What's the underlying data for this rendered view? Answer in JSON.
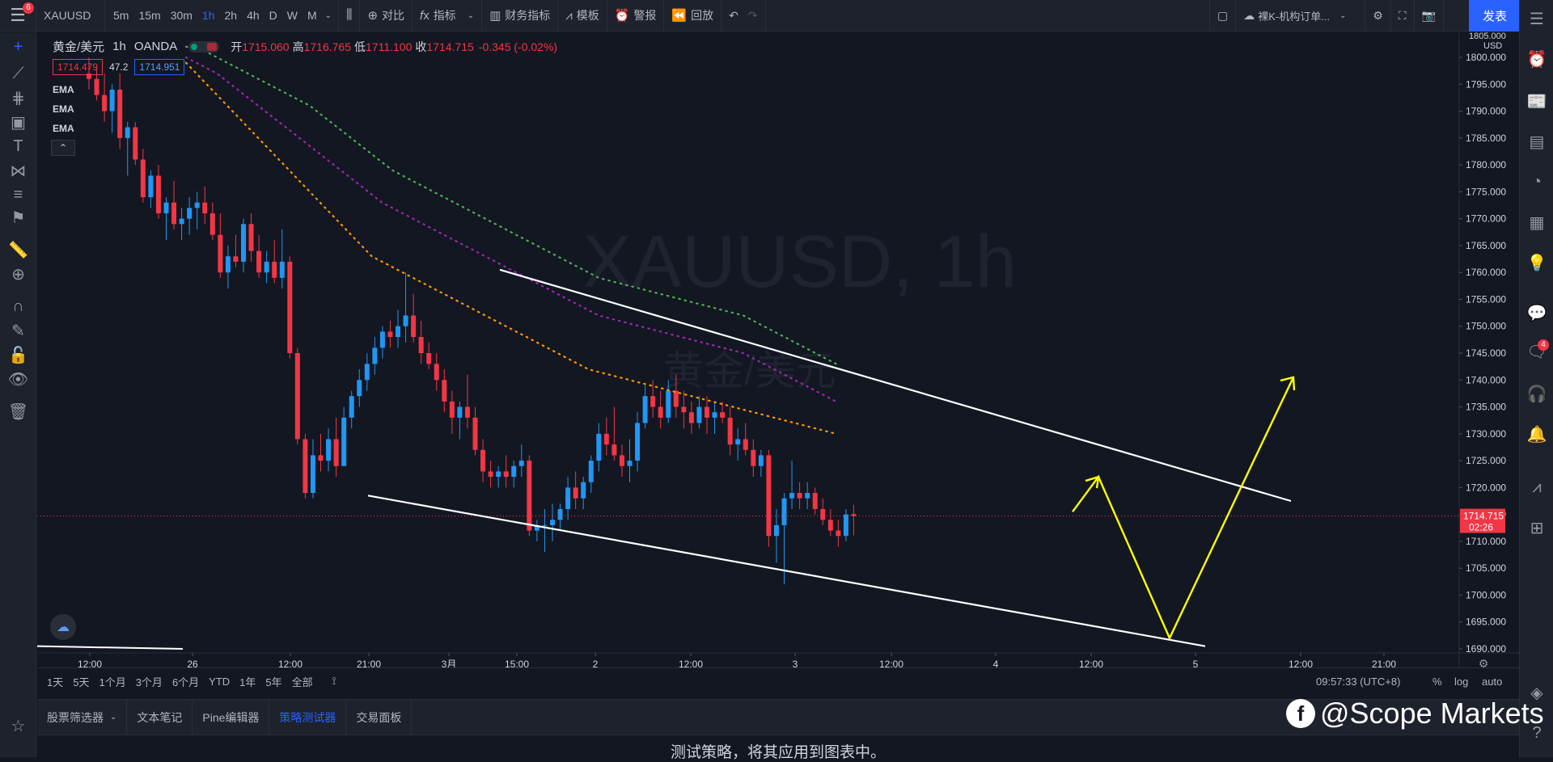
{
  "topbar": {
    "menu_badge": "6",
    "symbol": "XAUUSD",
    "intervals": [
      "5m",
      "15m",
      "30m",
      "1h",
      "2h",
      "4h",
      "D",
      "W",
      "M"
    ],
    "active_interval": "1h",
    "compare_label": "对比",
    "indicators_label": "指标",
    "financials_label": "财务指标",
    "templates_label": "模板",
    "alert_label": "警报",
    "replay_label": "回放",
    "layout_name": "裸K-机构订单...",
    "publish_label": "发表"
  },
  "legend": {
    "title": "黄金/美元",
    "interval": "1h",
    "source": "OANDA",
    "open_label": "开",
    "open": "1715.060",
    "high_label": "高",
    "high": "1716.765",
    "low_label": "低",
    "low": "1711.100",
    "close_label": "收",
    "close": "1714.715",
    "change": "-0.345 (-0.02%)",
    "bid": "1714.479",
    "spread": "47.2",
    "ask": "1714.951",
    "ema_labels": [
      "EMA",
      "EMA",
      "EMA"
    ]
  },
  "watermark_chart": {
    "symbol": "XAUUSD, 1h",
    "name": "黄金/美元"
  },
  "price_axis": {
    "currency": "USD",
    "top_label": "1805.000",
    "ticks": [
      "1800.000",
      "1795.000",
      "1790.000",
      "1785.000",
      "1780.000",
      "1775.000",
      "1770.000",
      "1765.000",
      "1760.000",
      "1755.000",
      "1750.000",
      "1745.000",
      "1740.000",
      "1735.000",
      "1730.000",
      "1725.000",
      "1720.000",
      "1715.000",
      "1710.000",
      "1705.000",
      "1700.000",
      "1695.000",
      "1690.000"
    ],
    "current_price": "1714.715",
    "countdown": "02:26"
  },
  "time_axis": {
    "labels": [
      "12:00",
      "26",
      "12:00",
      "21:00",
      "3月",
      "15:00",
      "2",
      "12:00",
      "3",
      "12:00",
      "4",
      "12:00",
      "5",
      "12:00",
      "21:00"
    ]
  },
  "timebar": {
    "ranges": [
      "1天",
      "5天",
      "1个月",
      "3个月",
      "6个月",
      "YTD",
      "1年",
      "5年",
      "全部"
    ],
    "clock": "09:57:33 (UTC+8)",
    "percent": "%",
    "log": "log",
    "auto": "auto"
  },
  "bottom_panel": {
    "tabs": [
      "股票筛选器",
      "文本笔记",
      "Pine编辑器",
      "策略测试器",
      "交易面板"
    ],
    "active_tab": "策略测试器",
    "message": "测试策略，将其应用到图表中。"
  },
  "right_toolbar": {
    "notification_badge": "4"
  },
  "brand_watermark": {
    "text": "@Scope Markets"
  },
  "colors": {
    "bull": "#2196f3",
    "bear": "#f23645",
    "ema_fast": "#ff9800",
    "ema_mid": "#9c27b0",
    "ema_slow": "#4caf50",
    "trendline": "#ffffff",
    "projection": "#ffff00",
    "accent": "#2962ff"
  },
  "chart_data": {
    "type": "candlestick",
    "symbol": "XAUUSD",
    "interval": "1h",
    "ylim": [
      1690,
      1805
    ],
    "candles": [
      {
        "o": 1797,
        "h": 1800,
        "l": 1794,
        "c": 1796
      },
      {
        "o": 1796,
        "h": 1798,
        "l": 1792,
        "c": 1793
      },
      {
        "o": 1793,
        "h": 1797,
        "l": 1788,
        "c": 1790
      },
      {
        "o": 1790,
        "h": 1795,
        "l": 1786,
        "c": 1794
      },
      {
        "o": 1794,
        "h": 1797,
        "l": 1783,
        "c": 1785
      },
      {
        "o": 1785,
        "h": 1788,
        "l": 1778,
        "c": 1787
      },
      {
        "o": 1787,
        "h": 1788,
        "l": 1780,
        "c": 1781
      },
      {
        "o": 1781,
        "h": 1783,
        "l": 1773,
        "c": 1774
      },
      {
        "o": 1774,
        "h": 1779,
        "l": 1772,
        "c": 1778
      },
      {
        "o": 1778,
        "h": 1780,
        "l": 1770,
        "c": 1771
      },
      {
        "o": 1771,
        "h": 1774,
        "l": 1766,
        "c": 1773
      },
      {
        "o": 1773,
        "h": 1777,
        "l": 1768,
        "c": 1769
      },
      {
        "o": 1769,
        "h": 1772,
        "l": 1766,
        "c": 1770
      },
      {
        "o": 1770,
        "h": 1774,
        "l": 1767,
        "c": 1772
      },
      {
        "o": 1772,
        "h": 1775,
        "l": 1768,
        "c": 1773
      },
      {
        "o": 1773,
        "h": 1776,
        "l": 1769,
        "c": 1771
      },
      {
        "o": 1771,
        "h": 1773,
        "l": 1766,
        "c": 1767
      },
      {
        "o": 1767,
        "h": 1771,
        "l": 1759,
        "c": 1760
      },
      {
        "o": 1760,
        "h": 1765,
        "l": 1757,
        "c": 1763
      },
      {
        "o": 1763,
        "h": 1767,
        "l": 1761,
        "c": 1762
      },
      {
        "o": 1762,
        "h": 1770,
        "l": 1760,
        "c": 1769
      },
      {
        "o": 1769,
        "h": 1771,
        "l": 1762,
        "c": 1764
      },
      {
        "o": 1764,
        "h": 1767,
        "l": 1759,
        "c": 1760
      },
      {
        "o": 1760,
        "h": 1764,
        "l": 1758,
        "c": 1762
      },
      {
        "o": 1762,
        "h": 1766,
        "l": 1758,
        "c": 1759
      },
      {
        "o": 1759,
        "h": 1768,
        "l": 1757,
        "c": 1762
      },
      {
        "o": 1762,
        "h": 1763,
        "l": 1744,
        "c": 1745
      },
      {
        "o": 1745,
        "h": 1746,
        "l": 1728,
        "c": 1729
      },
      {
        "o": 1729,
        "h": 1730,
        "l": 1718,
        "c": 1719
      },
      {
        "o": 1719,
        "h": 1729,
        "l": 1718,
        "c": 1726
      },
      {
        "o": 1726,
        "h": 1730,
        "l": 1723,
        "c": 1725
      },
      {
        "o": 1725,
        "h": 1731,
        "l": 1723,
        "c": 1729
      },
      {
        "o": 1729,
        "h": 1733,
        "l": 1722,
        "c": 1724
      },
      {
        "o": 1724,
        "h": 1735,
        "l": 1724,
        "c": 1733
      },
      {
        "o": 1733,
        "h": 1738,
        "l": 1731,
        "c": 1737
      },
      {
        "o": 1737,
        "h": 1742,
        "l": 1735,
        "c": 1740
      },
      {
        "o": 1740,
        "h": 1745,
        "l": 1738,
        "c": 1743
      },
      {
        "o": 1743,
        "h": 1748,
        "l": 1741,
        "c": 1746
      },
      {
        "o": 1746,
        "h": 1750,
        "l": 1744,
        "c": 1749
      },
      {
        "o": 1749,
        "h": 1751,
        "l": 1746,
        "c": 1748
      },
      {
        "o": 1748,
        "h": 1753,
        "l": 1746,
        "c": 1750
      },
      {
        "o": 1750,
        "h": 1760,
        "l": 1747,
        "c": 1752
      },
      {
        "o": 1752,
        "h": 1756,
        "l": 1747,
        "c": 1748
      },
      {
        "o": 1748,
        "h": 1751,
        "l": 1743,
        "c": 1745
      },
      {
        "o": 1745,
        "h": 1747,
        "l": 1742,
        "c": 1743
      },
      {
        "o": 1743,
        "h": 1745,
        "l": 1738,
        "c": 1740
      },
      {
        "o": 1740,
        "h": 1742,
        "l": 1734,
        "c": 1736
      },
      {
        "o": 1736,
        "h": 1738,
        "l": 1730,
        "c": 1733
      },
      {
        "o": 1733,
        "h": 1736,
        "l": 1729,
        "c": 1735
      },
      {
        "o": 1735,
        "h": 1741,
        "l": 1731,
        "c": 1733
      },
      {
        "o": 1733,
        "h": 1735,
        "l": 1726,
        "c": 1727
      },
      {
        "o": 1727,
        "h": 1729,
        "l": 1721,
        "c": 1723
      },
      {
        "o": 1723,
        "h": 1725,
        "l": 1720,
        "c": 1722
      },
      {
        "o": 1722,
        "h": 1724,
        "l": 1720,
        "c": 1723
      },
      {
        "o": 1723,
        "h": 1726,
        "l": 1720,
        "c": 1722
      },
      {
        "o": 1722,
        "h": 1725,
        "l": 1720,
        "c": 1724
      },
      {
        "o": 1724,
        "h": 1728,
        "l": 1722,
        "c": 1725
      },
      {
        "o": 1725,
        "h": 1726,
        "l": 1711,
        "c": 1712
      },
      {
        "o": 1712,
        "h": 1714,
        "l": 1710,
        "c": 1713
      },
      {
        "o": 1713,
        "h": 1716,
        "l": 1708,
        "c": 1713
      },
      {
        "o": 1713,
        "h": 1717,
        "l": 1710,
        "c": 1714
      },
      {
        "o": 1714,
        "h": 1717,
        "l": 1712,
        "c": 1716
      },
      {
        "o": 1716,
        "h": 1722,
        "l": 1714,
        "c": 1720
      },
      {
        "o": 1720,
        "h": 1723,
        "l": 1716,
        "c": 1718
      },
      {
        "o": 1718,
        "h": 1722,
        "l": 1716,
        "c": 1721
      },
      {
        "o": 1721,
        "h": 1726,
        "l": 1719,
        "c": 1725
      },
      {
        "o": 1725,
        "h": 1732,
        "l": 1723,
        "c": 1730
      },
      {
        "o": 1730,
        "h": 1733,
        "l": 1726,
        "c": 1728
      },
      {
        "o": 1728,
        "h": 1735,
        "l": 1725,
        "c": 1726
      },
      {
        "o": 1726,
        "h": 1728,
        "l": 1722,
        "c": 1724
      },
      {
        "o": 1724,
        "h": 1729,
        "l": 1721,
        "c": 1725
      },
      {
        "o": 1725,
        "h": 1734,
        "l": 1723,
        "c": 1732
      },
      {
        "o": 1732,
        "h": 1739,
        "l": 1731,
        "c": 1737
      },
      {
        "o": 1737,
        "h": 1740,
        "l": 1733,
        "c": 1735
      },
      {
        "o": 1735,
        "h": 1738,
        "l": 1731,
        "c": 1733
      },
      {
        "o": 1733,
        "h": 1740,
        "l": 1732,
        "c": 1738
      },
      {
        "o": 1738,
        "h": 1741,
        "l": 1733,
        "c": 1735
      },
      {
        "o": 1735,
        "h": 1738,
        "l": 1731,
        "c": 1734
      },
      {
        "o": 1734,
        "h": 1736,
        "l": 1730,
        "c": 1732
      },
      {
        "o": 1732,
        "h": 1737,
        "l": 1731,
        "c": 1735
      },
      {
        "o": 1735,
        "h": 1737,
        "l": 1730,
        "c": 1733
      },
      {
        "o": 1733,
        "h": 1736,
        "l": 1730,
        "c": 1734
      },
      {
        "o": 1734,
        "h": 1736,
        "l": 1732,
        "c": 1733
      },
      {
        "o": 1733,
        "h": 1735,
        "l": 1726,
        "c": 1728
      },
      {
        "o": 1728,
        "h": 1731,
        "l": 1725,
        "c": 1729
      },
      {
        "o": 1729,
        "h": 1732,
        "l": 1726,
        "c": 1727
      },
      {
        "o": 1727,
        "h": 1729,
        "l": 1722,
        "c": 1724
      },
      {
        "o": 1724,
        "h": 1727,
        "l": 1722,
        "c": 1726
      },
      {
        "o": 1726,
        "h": 1727,
        "l": 1709,
        "c": 1711
      },
      {
        "o": 1711,
        "h": 1716,
        "l": 1706,
        "c": 1713
      },
      {
        "o": 1713,
        "h": 1719,
        "l": 1702,
        "c": 1718
      },
      {
        "o": 1718,
        "h": 1725,
        "l": 1716,
        "c": 1719
      },
      {
        "o": 1719,
        "h": 1721,
        "l": 1716,
        "c": 1718
      },
      {
        "o": 1718,
        "h": 1721,
        "l": 1716,
        "c": 1719
      },
      {
        "o": 1719,
        "h": 1720,
        "l": 1715,
        "c": 1716
      },
      {
        "o": 1716,
        "h": 1718,
        "l": 1713,
        "c": 1714
      },
      {
        "o": 1714,
        "h": 1716,
        "l": 1711,
        "c": 1712
      },
      {
        "o": 1712,
        "h": 1714,
        "l": 1709,
        "c": 1711
      },
      {
        "o": 1711,
        "h": 1716,
        "l": 1710,
        "c": 1715
      },
      {
        "o": 1715.06,
        "h": 1716.765,
        "l": 1711.1,
        "c": 1714.715
      }
    ],
    "ema_fast": [
      1799,
      1797,
      1795,
      1793,
      1791,
      1789,
      1787,
      1785,
      1783,
      1781,
      1779,
      1777,
      1775,
      1773,
      1771,
      1769,
      1767,
      1765,
      1763,
      1762,
      1761,
      1760,
      1759,
      1758,
      1757,
      1756,
      1755,
      1754,
      1753,
      1752,
      1751,
      1750,
      1749,
      1748,
      1747,
      1746,
      1745,
      1744,
      1743,
      1742,
      1741.5,
      1741,
      1740.5,
      1740,
      1739.5,
      1739,
      1738.5,
      1738,
      1737.5,
      1737,
      1736.5,
      1736,
      1735.5,
      1735,
      1734.5,
      1734,
      1733.5,
      1733,
      1732.5,
      1732,
      1731.5,
      1731,
      1730.5,
      1730
    ],
    "ema_mid": [
      1800,
      1799,
      1798,
      1797,
      1795.5,
      1794,
      1792.5,
      1791,
      1789.5,
      1788,
      1786.5,
      1785,
      1783.5,
      1782,
      1780.5,
      1779,
      1777.5,
      1776,
      1774.5,
      1773,
      1772,
      1771,
      1770,
      1769,
      1768,
      1767,
      1766,
      1765,
      1764,
      1763,
      1762,
      1761,
      1760,
      1759,
      1758,
      1757,
      1756,
      1755,
      1754,
      1753,
      1752,
      1751.5,
      1751,
      1750.5,
      1750,
      1749.5,
      1749,
      1748.5,
      1748,
      1747.5,
      1747,
      1746.5,
      1746,
      1745.5,
      1745,
      1744,
      1743,
      1742,
      1741,
      1740,
      1739,
      1738,
      1737,
      1736
    ],
    "ema_slow": [
      1802,
      1801.5,
      1801,
      1800,
      1799,
      1798,
      1797,
      1796,
      1795,
      1794,
      1793,
      1792,
      1791,
      1789.5,
      1788,
      1786.5,
      1785,
      1783.5,
      1782,
      1780.5,
      1779,
      1778,
      1777,
      1776,
      1775,
      1774,
      1773,
      1772,
      1771,
      1770,
      1769,
      1768,
      1767,
      1766,
      1765,
      1764,
      1763,
      1762,
      1761,
      1760,
      1759,
      1758.5,
      1758,
      1757.5,
      1757,
      1756.5,
      1756,
      1755.5,
      1755,
      1754.5,
      1754,
      1753.5,
      1753,
      1752.5,
      1752,
      1751,
      1750,
      1749,
      1748,
      1747,
      1746,
      1745,
      1744,
      1743
    ]
  }
}
